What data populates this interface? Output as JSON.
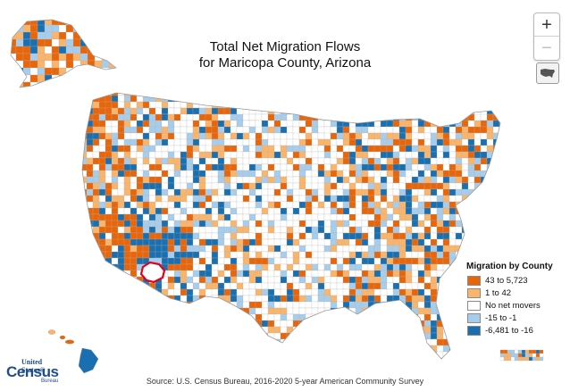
{
  "map": {
    "title_line1": "Total Net Migration Flows",
    "title_line2": "for Maricopa County, Arizona",
    "focus_county": "Maricopa County, Arizona",
    "regions": [
      "Alaska",
      "Hawaii",
      "Contiguous United States",
      "Puerto Rico"
    ]
  },
  "controls": {
    "zoom_in": "+",
    "zoom_out": "−",
    "home_icon": "us-map-icon"
  },
  "legend": {
    "title": "Migration by County",
    "items": [
      {
        "label": "43 to 5,723",
        "color": "#e8650a"
      },
      {
        "label": "1 to 42",
        "color": "#fbb56b"
      },
      {
        "label": "No net movers",
        "color": "#ffffff"
      },
      {
        "label": "-15 to -1",
        "color": "#a7cdea"
      },
      {
        "label": "-6,481 to -16",
        "color": "#1a6fb0"
      }
    ]
  },
  "focus_color": "#ffffff",
  "focus_outline": "#e2001a",
  "source": "Source: U.S. Census Bureau, 2016-2020 5-year American Community Survey",
  "logo": {
    "line1": "United States®",
    "line2": "Census",
    "line3": "Bureau"
  }
}
